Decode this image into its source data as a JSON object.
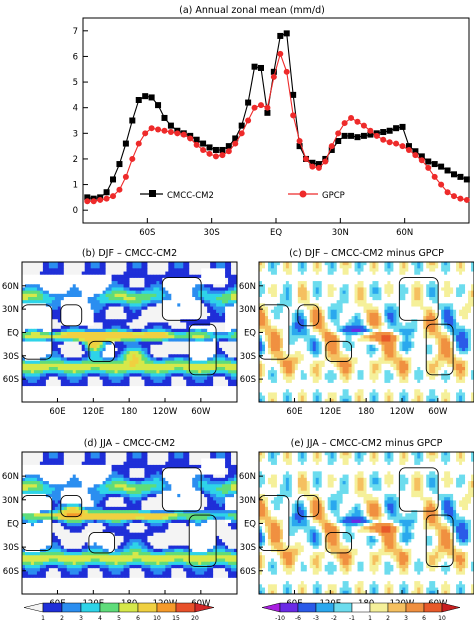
{
  "chart_data": [
    {
      "type": "line",
      "title": "(a) Annual zonal mean (mm/d)",
      "xlabel": "",
      "ylabel": "",
      "xlim": [
        -90,
        90
      ],
      "ylim": [
        -0.5,
        7.5
      ],
      "x_ticks": [
        {
          "value": -60,
          "label": "60S"
        },
        {
          "value": -30,
          "label": "30S"
        },
        {
          "value": 0,
          "label": "EQ"
        },
        {
          "value": 30,
          "label": "30N"
        },
        {
          "value": 60,
          "label": "60N"
        }
      ],
      "y_ticks": [
        0,
        1,
        2,
        3,
        4,
        5,
        6,
        7
      ],
      "legend": "bottom",
      "x": [
        -88,
        -85,
        -82,
        -79,
        -76,
        -73,
        -70,
        -67,
        -64,
        -61,
        -58,
        -55,
        -52,
        -49,
        -46,
        -43,
        -40,
        -37,
        -34,
        -31,
        -28,
        -25,
        -22,
        -19,
        -16,
        -13,
        -10,
        -7,
        -4,
        -1,
        2,
        5,
        8,
        11,
        14,
        17,
        20,
        23,
        26,
        29,
        32,
        35,
        38,
        41,
        44,
        47,
        50,
        53,
        56,
        59,
        62,
        65,
        68,
        71,
        74,
        77,
        80,
        83,
        86,
        89
      ],
      "series": [
        {
          "name": "CMCC-CM2",
          "marker": "square",
          "color": "#000000",
          "values": [
            0.5,
            0.45,
            0.5,
            0.7,
            1.2,
            1.8,
            2.6,
            3.5,
            4.3,
            4.45,
            4.4,
            4.1,
            3.6,
            3.3,
            3.1,
            3.0,
            2.9,
            2.75,
            2.6,
            2.45,
            2.35,
            2.35,
            2.5,
            2.8,
            3.3,
            4.2,
            5.6,
            5.55,
            3.8,
            5.4,
            6.8,
            6.9,
            4.5,
            2.5,
            2.0,
            1.85,
            1.8,
            2.0,
            2.35,
            2.7,
            2.9,
            2.9,
            2.85,
            2.9,
            2.95,
            3.0,
            3.05,
            3.1,
            3.2,
            3.25,
            2.5,
            2.3,
            2.1,
            1.9,
            1.8,
            1.7,
            1.55,
            1.4,
            1.3,
            1.2
          ]
        },
        {
          "name": "GPCP",
          "marker": "circle",
          "color": "#ee2a2a",
          "values": [
            0.35,
            0.35,
            0.4,
            0.45,
            0.55,
            0.8,
            1.3,
            2.0,
            2.6,
            3.0,
            3.2,
            3.15,
            3.1,
            3.05,
            3.0,
            2.95,
            2.8,
            2.55,
            2.35,
            2.2,
            2.1,
            2.15,
            2.3,
            2.6,
            3.0,
            3.5,
            4.0,
            4.1,
            4.0,
            5.2,
            6.1,
            5.4,
            3.7,
            2.7,
            2.0,
            1.7,
            1.65,
            1.9,
            2.5,
            3.0,
            3.4,
            3.6,
            3.45,
            3.3,
            3.1,
            2.9,
            2.75,
            2.65,
            2.6,
            2.5,
            2.35,
            2.15,
            1.95,
            1.65,
            1.3,
            1.0,
            0.7,
            0.55,
            0.45,
            0.4
          ]
        }
      ]
    },
    {
      "type": "heatmap",
      "title": "(b) DJF – CMCC-CM2",
      "x_ticks": [
        "60E",
        "120E",
        "180",
        "120W",
        "60W"
      ],
      "y_ticks": [
        "60N",
        "30N",
        "EQ",
        "30S",
        "60S"
      ]
    },
    {
      "type": "heatmap",
      "title": "(c) DJF – CMCC-CM2 minus GPCP",
      "x_ticks": [
        "60E",
        "120E",
        "180",
        "120W",
        "60W"
      ],
      "y_ticks": [
        "60N",
        "30N",
        "EQ",
        "30S",
        "60S"
      ]
    },
    {
      "type": "heatmap",
      "title": "(d) JJA – CMCC-CM2",
      "x_ticks": [
        "60E",
        "120E",
        "180",
        "120W",
        "60W"
      ],
      "y_ticks": [
        "60N",
        "30N",
        "EQ",
        "30S",
        "60S"
      ]
    },
    {
      "type": "heatmap",
      "title": "(e) JJA – CMCC-CM2 minus GPCP",
      "x_ticks": [
        "60E",
        "120E",
        "180",
        "120W",
        "60W"
      ],
      "y_ticks": [
        "60N",
        "30N",
        "EQ",
        "30S",
        "60S"
      ]
    }
  ],
  "colorbars": [
    {
      "labels": [
        "1",
        "2",
        "3",
        "4",
        "5",
        "6",
        "10",
        "15",
        "20"
      ],
      "colors": [
        "#f4f4f4",
        "#1f2fd8",
        "#2b8ef0",
        "#2ed4e8",
        "#5fdc7a",
        "#d6e84a",
        "#f0d040",
        "#f59a2a",
        "#e8502a",
        "#d22828"
      ]
    },
    {
      "labels": [
        "-10",
        "-6",
        "-3",
        "-2",
        "-1",
        "1",
        "2",
        "3",
        "6",
        "10"
      ],
      "colors": [
        "#a81ee0",
        "#6a2ae6",
        "#2a5ae8",
        "#2aa8ee",
        "#6cdcee",
        "#ffffff",
        "#f5f09a",
        "#f5c060",
        "#f09040",
        "#e85a2a",
        "#c81e1e"
      ]
    }
  ]
}
